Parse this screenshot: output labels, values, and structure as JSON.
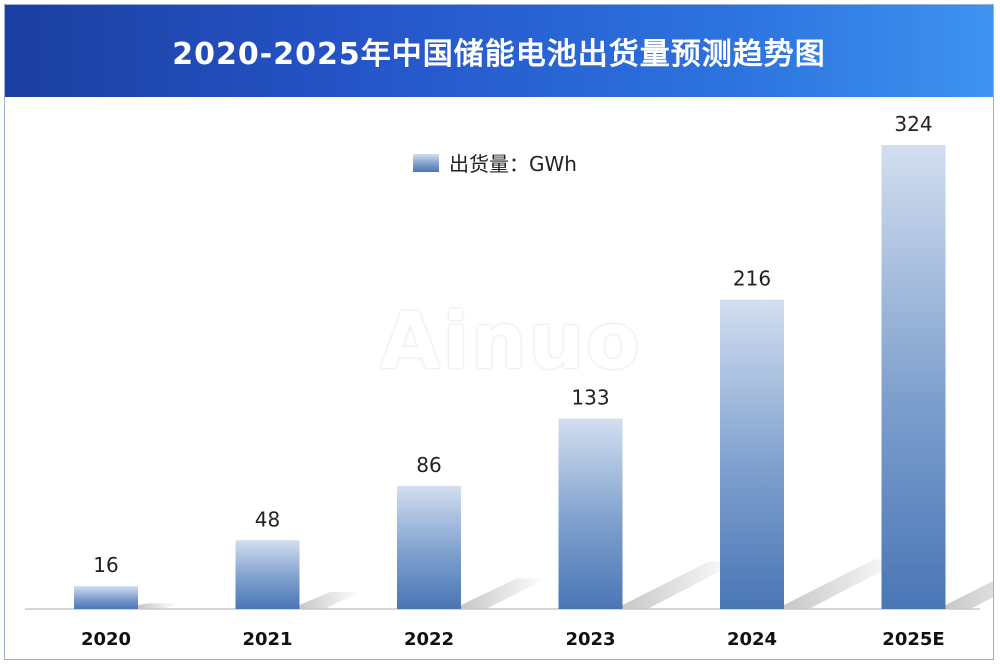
{
  "chart_data": {
    "type": "bar",
    "title": "2020-2025年中国储能电池出货量预测趋势图",
    "categories": [
      "2020",
      "2021",
      "2022",
      "2023",
      "2024",
      "2025E"
    ],
    "series": [
      {
        "name": "出货量：GWh",
        "values": [
          16,
          48,
          86,
          133,
          216,
          324
        ]
      }
    ],
    "xlabel": "",
    "ylabel": "",
    "ylim": [
      0,
      324
    ],
    "grid": false,
    "legend": "top-center",
    "colors": {
      "bar_top": "#d3def0",
      "bar_mid": "#7d9fcd",
      "bar_bottom": "#4a76b6",
      "header": "#2554c7"
    }
  },
  "watermark": "Ainuo"
}
